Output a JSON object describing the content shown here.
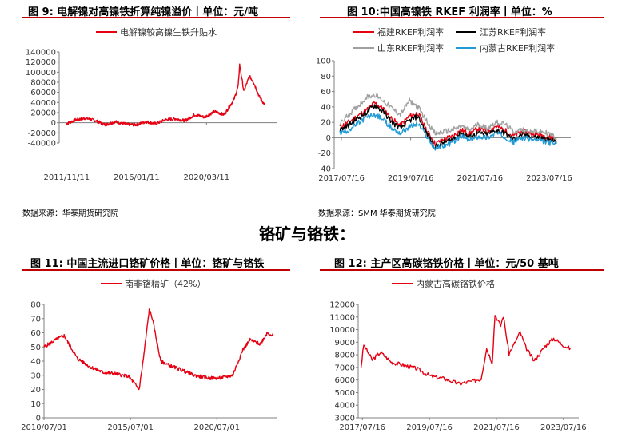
{
  "captions": {
    "fig9": "图 9: 电解镍对高镍铁折算纯镍溢价丨单位：元/吨",
    "fig10": "图 10:中国高镍铁 RKEF 利润率丨单位：%",
    "fig11": "图 11: 中国主流进口铬矿价格丨单位：铬矿与铬铁",
    "fig12": "图 12: 主产区高碳铬铁价格丨单位：元/50 基吨"
  },
  "sources": {
    "left": "数据来源：华泰期货研究院",
    "right": "数据来源：SMM 华泰期货研究院"
  },
  "section_title": "铬矿与铬铁：",
  "colors": {
    "red": "#e60012",
    "black": "#000000",
    "gray": "#a0a0a0",
    "blue": "#1f9ad6",
    "rule": "#c00000"
  },
  "chart_data": [
    {
      "id": "fig9",
      "type": "line",
      "title": "",
      "legend_position": "top",
      "ylim": [
        -40000,
        140000
      ],
      "yticks": [
        "140000",
        "120000",
        "100000",
        "80000",
        "60000",
        "40000",
        "20000",
        "0",
        "-20000",
        "-40000"
      ],
      "xticks": [
        "2011/11/11",
        "2016/01/11",
        "2020/03/11"
      ],
      "series": [
        {
          "name": "电解镍较高镍生铁升贴水",
          "color": "#e60012",
          "x": [
            "2011/11",
            "2012/06",
            "2013/01",
            "2013/08",
            "2014/03",
            "2014/10",
            "2015/06",
            "2016/01",
            "2016/08",
            "2017/03",
            "2017/10",
            "2018/05",
            "2018/12",
            "2019/07",
            "2020/02",
            "2020/09",
            "2021/04",
            "2021/11",
            "2022/02",
            "2022/03",
            "2022/06",
            "2022/10",
            "2023/01",
            "2023/05",
            "2023/09"
          ],
          "values": [
            -2000,
            6000,
            9000,
            4000,
            -4000,
            2000,
            -3000,
            -4000,
            2000,
            -2000,
            6000,
            8000,
            4000,
            16000,
            11000,
            22000,
            16000,
            46000,
            72000,
            115000,
            62000,
            92000,
            80000,
            52000,
            35000
          ]
        }
      ]
    },
    {
      "id": "fig10",
      "type": "line",
      "title": "",
      "legend_position": "top",
      "ylim": [
        -40,
        100
      ],
      "yticks": [
        "100",
        "80",
        "60",
        "40",
        "20",
        "0",
        "-20",
        "-40"
      ],
      "xticks": [
        "2017/07/16",
        "2019/07/16",
        "2021/07/16",
        "2023/07/16"
      ],
      "series": [
        {
          "name": "福建RKEF利润率",
          "color": "#e60012",
          "x": [
            "2017/07",
            "2017/10",
            "2018/01",
            "2018/04",
            "2018/07",
            "2018/10",
            "2019/01",
            "2019/04",
            "2019/07",
            "2019/10",
            "2020/01",
            "2020/04",
            "2020/07",
            "2020/10",
            "2021/01",
            "2021/04",
            "2021/07",
            "2021/10",
            "2022/01",
            "2022/04",
            "2022/07",
            "2022/10",
            "2023/01",
            "2023/04",
            "2023/07",
            "2023/10"
          ],
          "values": [
            14,
            20,
            28,
            35,
            45,
            38,
            24,
            16,
            28,
            32,
            10,
            -8,
            -2,
            2,
            10,
            5,
            12,
            8,
            15,
            10,
            2,
            8,
            6,
            4,
            2,
            -2
          ]
        },
        {
          "name": "江苏RKEF利润率",
          "color": "#000000",
          "x": [
            "2017/07",
            "2017/10",
            "2018/01",
            "2018/04",
            "2018/07",
            "2018/10",
            "2019/01",
            "2019/04",
            "2019/07",
            "2019/10",
            "2020/01",
            "2020/04",
            "2020/07",
            "2020/10",
            "2021/01",
            "2021/04",
            "2021/07",
            "2021/10",
            "2022/01",
            "2022/04",
            "2022/07",
            "2022/10",
            "2023/01",
            "2023/04",
            "2023/07",
            "2023/10"
          ],
          "values": [
            10,
            16,
            25,
            32,
            42,
            34,
            20,
            12,
            22,
            28,
            6,
            -12,
            -6,
            -2,
            6,
            1,
            6,
            4,
            10,
            6,
            -2,
            4,
            2,
            0,
            -2,
            -5
          ]
        },
        {
          "name": "山东RKEF利润率",
          "color": "#a0a0a0",
          "x": [
            "2017/07",
            "2017/10",
            "2018/01",
            "2018/04",
            "2018/07",
            "2018/10",
            "2019/01",
            "2019/04",
            "2019/07",
            "2019/10",
            "2020/01",
            "2020/04",
            "2020/07",
            "2020/10",
            "2021/01",
            "2021/04",
            "2021/07",
            "2021/10",
            "2022/01",
            "2022/04",
            "2022/07",
            "2022/10",
            "2023/01",
            "2023/04",
            "2023/07",
            "2023/10"
          ],
          "values": [
            18,
            30,
            40,
            52,
            56,
            48,
            38,
            30,
            48,
            40,
            22,
            5,
            8,
            10,
            15,
            10,
            18,
            12,
            20,
            18,
            8,
            10,
            8,
            8,
            6,
            0
          ]
        },
        {
          "name": "内蒙古RKEF利润率",
          "color": "#1f9ad6",
          "x": [
            "2017/07",
            "2017/10",
            "2018/01",
            "2018/04",
            "2018/07",
            "2018/10",
            "2019/01",
            "2019/04",
            "2019/07",
            "2019/10",
            "2020/01",
            "2020/04",
            "2020/07",
            "2020/10",
            "2021/01",
            "2021/04",
            "2021/07",
            "2021/10",
            "2022/01",
            "2022/04",
            "2022/07",
            "2022/10",
            "2023/01",
            "2023/04",
            "2023/07",
            "2023/10"
          ],
          "values": [
            6,
            10,
            18,
            26,
            30,
            24,
            12,
            6,
            14,
            18,
            2,
            -14,
            -10,
            -6,
            2,
            -4,
            2,
            0,
            6,
            2,
            -6,
            0,
            -2,
            -4,
            -6,
            -8
          ]
        }
      ]
    },
    {
      "id": "fig11",
      "type": "line",
      "title": "",
      "legend_position": "top",
      "ylim": [
        0,
        80
      ],
      "yticks": [
        "80",
        "70",
        "60",
        "50",
        "40",
        "30",
        "20",
        "10",
        "0"
      ],
      "xticks": [
        "2010/07/01",
        "2015/07/01",
        "2020/07/01"
      ],
      "series": [
        {
          "name": "南非铬精矿（42%）",
          "color": "#e60012",
          "x": [
            "2010/07",
            "2011/03",
            "2011/09",
            "2012/06",
            "2013/03",
            "2013/12",
            "2014/09",
            "2015/06",
            "2016/01",
            "2016/04",
            "2016/08",
            "2016/10",
            "2017/04",
            "2017/10",
            "2018/06",
            "2019/03",
            "2020/01",
            "2020/09",
            "2021/06",
            "2022/01",
            "2022/06",
            "2023/01",
            "2023/06",
            "2023/10"
          ],
          "values": [
            50,
            55,
            58,
            42,
            36,
            32,
            31,
            29,
            20,
            42,
            76,
            71,
            40,
            37,
            34,
            30,
            28,
            28,
            30,
            48,
            55,
            52,
            60,
            58
          ]
        }
      ]
    },
    {
      "id": "fig12",
      "type": "line",
      "title": "",
      "legend_position": "top",
      "ylim": [
        3000,
        12000
      ],
      "yticks": [
        "12000",
        "11000",
        "10000",
        "9000",
        "8000",
        "7000",
        "6000",
        "5000",
        "4000",
        "3000"
      ],
      "xticks": [
        "2017/07/16",
        "2019/07/16",
        "2021/07/16",
        "2023/07/16"
      ],
      "series": [
        {
          "name": "内蒙古高碳铬铁价格",
          "color": "#e60012",
          "x": [
            "2017/07",
            "2017/08",
            "2017/11",
            "2018/02",
            "2018/06",
            "2018/10",
            "2019/03",
            "2019/08",
            "2020/01",
            "2020/06",
            "2020/11",
            "2021/02",
            "2021/04",
            "2021/06",
            "2021/07",
            "2021/09",
            "2021/10",
            "2021/12",
            "2022/02",
            "2022/04",
            "2022/06",
            "2022/09",
            "2023/01",
            "2023/04",
            "2023/08",
            "2023/10"
          ],
          "values": [
            7000,
            8800,
            7600,
            8200,
            7400,
            7200,
            6900,
            6300,
            6100,
            5700,
            5900,
            6100,
            8500,
            7400,
            11200,
            10300,
            11100,
            8100,
            8900,
            9800,
            8600,
            7500,
            8700,
            9300,
            8700,
            8500
          ]
        }
      ]
    }
  ]
}
